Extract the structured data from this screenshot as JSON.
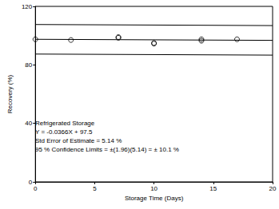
{
  "chart_data": {
    "type": "scatter",
    "x_label": "Storage Time (Days)",
    "y_label": "Recovery (%)",
    "xlim": [
      0,
      20
    ],
    "xticks": [
      0,
      5,
      10,
      15,
      20
    ],
    "ylim": [
      0,
      120
    ],
    "yticks": [
      0,
      40,
      80,
      120
    ],
    "grid": false,
    "annotations": [
      "Refrigerated Storage",
      "Y = -0.0366X + 97.5",
      "Std Error of Estimate = 5.14 %",
      "95 % Confidence Limits = ±(1.96)(5.14) = ± 10.1 %"
    ],
    "series": [
      {
        "type": "scatter",
        "marker": "open_circle",
        "color": "#000000",
        "x": [
          0,
          3,
          7,
          7,
          10,
          10,
          14,
          14,
          17
        ],
        "values": [
          97.5,
          97,
          99,
          98.5,
          95,
          94.5,
          97.5,
          96.5,
          97.5
        ]
      },
      {
        "type": "line",
        "line_style": "solid",
        "color": "#000000",
        "x": [
          0,
          20
        ],
        "values": [
          97.5,
          96.77
        ]
      },
      {
        "type": "line",
        "line_style": "solid",
        "color": "#000000",
        "x": [
          0,
          20
        ],
        "values": [
          107.6,
          106.87
        ]
      },
      {
        "type": "line",
        "line_style": "solid",
        "color": "#000000",
        "x": [
          0,
          20
        ],
        "values": [
          87.4,
          86.67
        ]
      }
    ]
  }
}
